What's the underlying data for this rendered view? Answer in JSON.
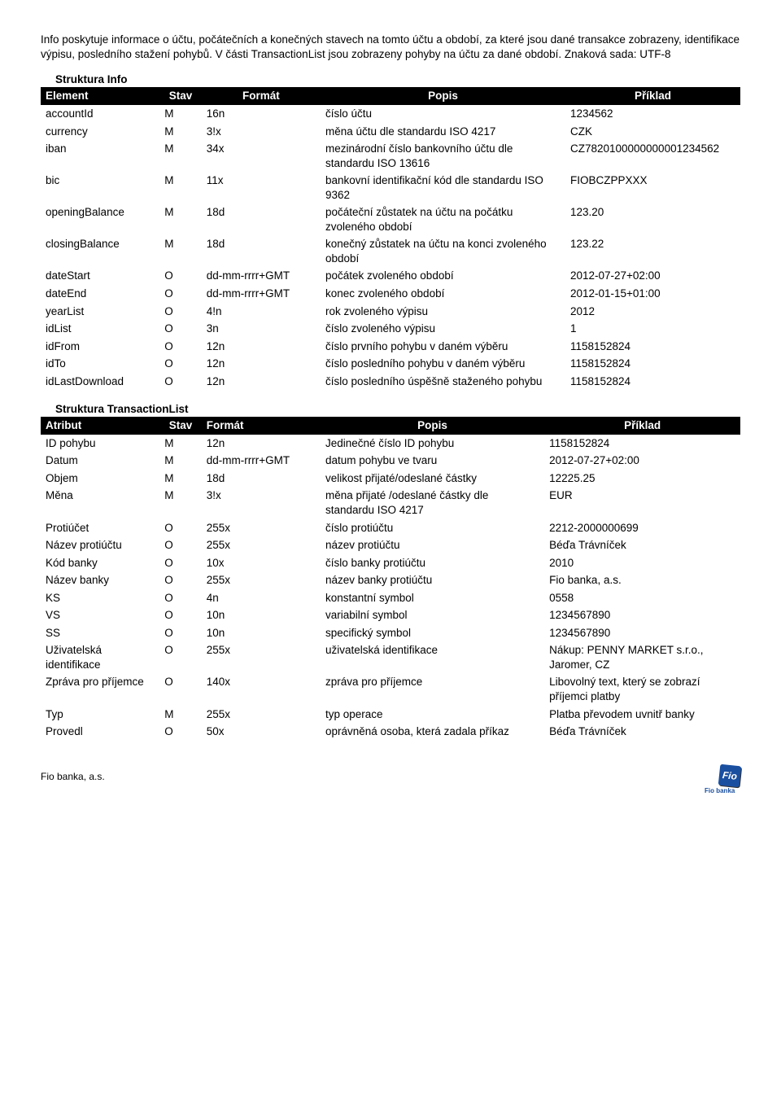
{
  "intro": "Info poskytuje informace o účtu, počátečních a konečných stavech na tomto účtu a období, za které jsou dané transakce zobrazeny, identifikace výpisu, posledního stažení pohybů. V části TransactionList jsou zobrazeny pohyby na účtu za dané období. Znaková sada: UTF-8",
  "table1": {
    "title": "Struktura Info",
    "headers": {
      "element": "Element",
      "stav": "Stav",
      "format": "Formát",
      "popis": "Popis",
      "priklad": "Příklad"
    },
    "rows": [
      {
        "el": "accountId",
        "st": "M",
        "fm": "16n",
        "po": "číslo účtu",
        "pr": "1234562"
      },
      {
        "el": "currency",
        "st": "M",
        "fm": "3!x",
        "po": "měna účtu dle standardu ISO 4217",
        "pr": "CZK"
      },
      {
        "el": "iban",
        "st": "M",
        "fm": "34x",
        "po": "mezinárodní číslo bankovního účtu dle standardu ISO 13616",
        "pr": "CZ7820100000000001234562"
      },
      {
        "el": "bic",
        "st": "M",
        "fm": "11x",
        "po": "bankovní identifikační kód dle standardu ISO 9362",
        "pr": "FIOBCZPPXXX"
      },
      {
        "el": "openingBalance",
        "st": "M",
        "fm": "18d",
        "po": "počáteční zůstatek na účtu na počátku zvoleného období",
        "pr": "123.20"
      },
      {
        "el": "closingBalance",
        "st": "M",
        "fm": "18d",
        "po": "konečný zůstatek na účtu na konci zvoleného období",
        "pr": "123.22"
      },
      {
        "el": "dateStart",
        "st": "O",
        "fm": "dd-mm-rrrr+GMT",
        "po": "počátek zvoleného období",
        "pr": "2012-07-27+02:00"
      },
      {
        "el": "dateEnd",
        "st": "O",
        "fm": "dd-mm-rrrr+GMT",
        "po": "konec zvoleného období",
        "pr": "2012-01-15+01:00"
      },
      {
        "el": "yearList",
        "st": "O",
        "fm": "4!n",
        "po": "rok zvoleného výpisu",
        "pr": "2012"
      },
      {
        "el": "idList",
        "st": "O",
        "fm": "3n",
        "po": "číslo zvoleného výpisu",
        "pr": "1"
      },
      {
        "el": "idFrom",
        "st": "O",
        "fm": "12n",
        "po": "číslo prvního pohybu v daném výběru",
        "pr": "1158152824"
      },
      {
        "el": "idTo",
        "st": "O",
        "fm": "12n",
        "po": "číslo posledního pohybu v daném výběru",
        "pr": "1158152824"
      },
      {
        "el": "idLastDownload",
        "st": "O",
        "fm": "12n",
        "po": "číslo posledního úspěšně staženého pohybu",
        "pr": "1158152824"
      }
    ]
  },
  "table2": {
    "title": "Struktura TransactionList",
    "headers": {
      "atribut": "Atribut",
      "stav": "Stav",
      "format": "Formát",
      "popis": "Popis",
      "priklad": "Příklad"
    },
    "rows": [
      {
        "el": "ID pohybu",
        "st": "M",
        "fm": "12n",
        "po": "Jedinečné číslo ID pohybu",
        "pr": "1158152824"
      },
      {
        "el": "Datum",
        "st": "M",
        "fm": "dd-mm-rrrr+GMT",
        "po": "datum pohybu ve tvaru",
        "pr": "2012-07-27+02:00"
      },
      {
        "el": "Objem",
        "st": "M",
        "fm": "18d",
        "po": "velikost přijaté/odeslané částky",
        "pr": "12225.25"
      },
      {
        "el": "Měna",
        "st": "M",
        "fm": "3!x",
        "po": "měna přijaté /odeslané částky dle standardu ISO 4217",
        "pr": "EUR"
      },
      {
        "el": "Protiúčet",
        "st": "O",
        "fm": "255x",
        "po": "číslo protiúčtu",
        "pr": "2212-2000000699"
      },
      {
        "el": "Název protiúčtu",
        "st": "O",
        "fm": "255x",
        "po": "název protiúčtu",
        "pr": "Béďa Trávníček"
      },
      {
        "el": "Kód banky",
        "st": "O",
        "fm": "10x",
        "po": "číslo banky protiúčtu",
        "pr": "2010"
      },
      {
        "el": "Název banky",
        "st": "O",
        "fm": "255x",
        "po": "název banky protiúčtu",
        "pr": "Fio banka, a.s."
      },
      {
        "el": "KS",
        "st": "O",
        "fm": "4n",
        "po": "konstantní symbol",
        "pr": "0558"
      },
      {
        "el": "VS",
        "st": "O",
        "fm": "10n",
        "po": "variabilní symbol",
        "pr": "1234567890"
      },
      {
        "el": "SS",
        "st": "O",
        "fm": "10n",
        "po": "specifický symbol",
        "pr": "1234567890"
      },
      {
        "el": "Uživatelská identifikace",
        "st": "O",
        "fm": "255x",
        "po": "uživatelská identifikace",
        "pr": "Nákup: PENNY MARKET s.r.o., Jaromer, CZ"
      },
      {
        "el": "Zpráva pro příjemce",
        "st": "O",
        "fm": "140x",
        "po": "zpráva pro příjemce",
        "pr": "Libovolný text, který se zobrazí příjemci platby"
      },
      {
        "el": "Typ",
        "st": "M",
        "fm": "255x",
        "po": "typ operace",
        "pr": "Platba převodem uvnitř banky"
      },
      {
        "el": "Provedl",
        "st": "O",
        "fm": "50x",
        "po": "oprávněná osoba, která zadala příkaz",
        "pr": "Béďa Trávníček"
      }
    ]
  },
  "footer": {
    "company": "Fio banka, a.s.",
    "logo": "Fio",
    "logo_sub": "Fio banka"
  }
}
